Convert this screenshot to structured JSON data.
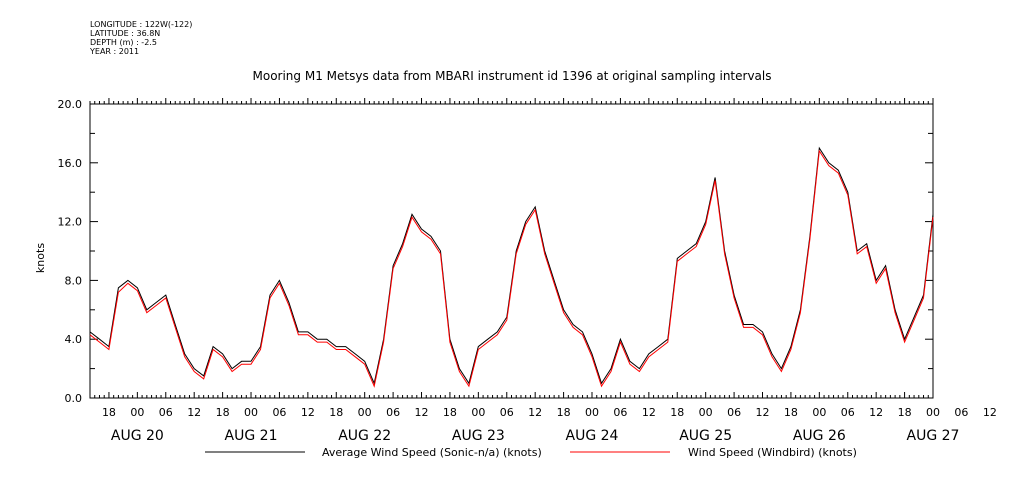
{
  "meta": {
    "longitude": "LONGITUDE : 122W(-122)",
    "latitude": "LATITUDE : 36.8N",
    "depth": "DEPTH (m) : -2.5",
    "year": "YEAR : 2011"
  },
  "chart_data": {
    "type": "line",
    "title": "Mooring M1 Metsys data from MBARI instrument id 1396 at original sampling intervals",
    "ylabel": "knots",
    "xlabel": "",
    "ylim": [
      0,
      20
    ],
    "yticks": [
      0.0,
      4.0,
      8.0,
      12.0,
      16.0,
      20.0
    ],
    "ytick_labels": [
      "0.0",
      "4.0",
      "8.0",
      "12.0",
      "16.0",
      "20.0"
    ],
    "xlim_hours": [
      -10,
      168
    ],
    "hour_ticks": [
      "18",
      "00",
      "06",
      "12",
      "18",
      "00",
      "06",
      "12",
      "18",
      "00",
      "06",
      "12",
      "18",
      "00",
      "06",
      "12",
      "18",
      "00",
      "06",
      "12",
      "18",
      "00",
      "06",
      "12",
      "18",
      "00",
      "06",
      "12",
      "18",
      "00",
      "06",
      "12"
    ],
    "date_labels": [
      "AUG 20",
      "AUG 21",
      "AUG 22",
      "AUG 23",
      "AUG 24",
      "AUG 25",
      "AUG 26",
      "AUG 27"
    ],
    "grid": false,
    "legend_position": "bottom",
    "x_hours": [
      -10,
      -8,
      -6,
      -4,
      -2,
      0,
      2,
      4,
      6,
      8,
      10,
      12,
      14,
      16,
      18,
      20,
      22,
      24,
      26,
      28,
      30,
      32,
      34,
      36,
      38,
      40,
      42,
      44,
      46,
      48,
      50,
      52,
      54,
      56,
      58,
      60,
      62,
      64,
      66,
      68,
      70,
      72,
      74,
      76,
      78,
      80,
      82,
      84,
      86,
      88,
      90,
      92,
      94,
      96,
      98,
      100,
      102,
      104,
      106,
      108,
      110,
      112,
      114,
      116,
      118,
      120,
      122,
      124,
      126,
      128,
      130,
      132,
      134,
      136,
      138,
      140,
      142,
      144,
      146,
      148,
      150,
      152,
      154,
      156,
      158,
      160,
      162,
      164,
      166,
      168
    ],
    "series": [
      {
        "name": "Average Wind Speed (Sonic-n/a) (knots)",
        "color": "#000000",
        "values": [
          4.5,
          4.0,
          3.5,
          7.5,
          8.0,
          7.5,
          6.0,
          6.5,
          7.0,
          5.0,
          3.0,
          2.0,
          1.5,
          3.5,
          3.0,
          2.0,
          2.5,
          2.5,
          3.5,
          7.0,
          8.0,
          6.5,
          4.5,
          4.5,
          4.0,
          4.0,
          3.5,
          3.5,
          3.0,
          2.5,
          1.0,
          4.0,
          9.0,
          10.5,
          12.5,
          11.5,
          11.0,
          10.0,
          4.0,
          2.0,
          1.0,
          3.5,
          4.0,
          4.5,
          5.5,
          10.0,
          12.0,
          13.0,
          10.0,
          8.0,
          6.0,
          5.0,
          4.5,
          3.0,
          1.0,
          2.0,
          4.0,
          2.5,
          2.0,
          3.0,
          3.5,
          4.0,
          9.5,
          10.0,
          10.5,
          12.0,
          15.0,
          10.0,
          7.0,
          5.0,
          5.0,
          4.5,
          3.0,
          2.0,
          3.5,
          6.0,
          11.0,
          17.0,
          16.0,
          15.5,
          14.0,
          10.0,
          10.5,
          8.0,
          9.0,
          6.0,
          4.0,
          5.5,
          7.0,
          12.5
        ]
      },
      {
        "name": "Wind Speed (Windbird) (knots)",
        "color": "#ff0000",
        "values": [
          4.3,
          3.8,
          3.3,
          7.2,
          7.8,
          7.3,
          5.8,
          6.3,
          6.8,
          4.8,
          2.8,
          1.8,
          1.3,
          3.3,
          2.8,
          1.8,
          2.3,
          2.3,
          3.3,
          6.8,
          7.8,
          6.3,
          4.3,
          4.3,
          3.8,
          3.8,
          3.3,
          3.3,
          2.8,
          2.3,
          0.8,
          3.8,
          8.8,
          10.3,
          12.3,
          11.3,
          10.8,
          9.8,
          3.8,
          1.8,
          0.8,
          3.3,
          3.8,
          4.3,
          5.3,
          9.8,
          11.8,
          12.8,
          9.8,
          7.8,
          5.8,
          4.8,
          4.3,
          2.8,
          0.8,
          1.8,
          3.8,
          2.3,
          1.8,
          2.8,
          3.3,
          3.8,
          9.3,
          9.8,
          10.3,
          11.8,
          14.8,
          9.8,
          6.8,
          4.8,
          4.8,
          4.3,
          2.8,
          1.8,
          3.3,
          5.8,
          10.8,
          16.8,
          15.8,
          15.3,
          13.8,
          9.8,
          10.3,
          7.8,
          8.8,
          5.8,
          3.8,
          5.3,
          6.8,
          12.3
        ]
      }
    ]
  }
}
